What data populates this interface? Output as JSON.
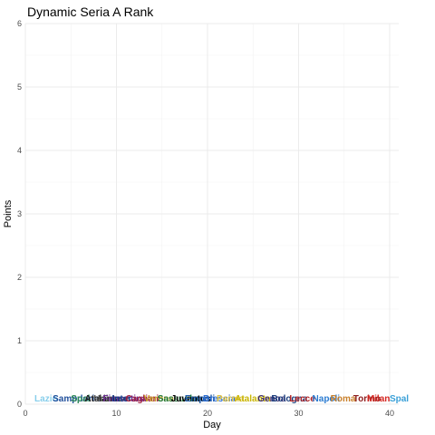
{
  "chart_data": {
    "type": "scatter",
    "title": "Dynamic Seria A Rank",
    "xlabel": "Day",
    "ylabel": "Points",
    "xlim": [
      0,
      41
    ],
    "ylim": [
      0,
      6
    ],
    "x_ticks": [
      0,
      10,
      20,
      30,
      40
    ],
    "y_ticks": [
      0,
      1,
      2,
      3,
      4,
      5,
      6
    ],
    "grid": true,
    "legend": "none",
    "points": [
      {
        "label": "Lazio",
        "x": 1,
        "y": 0,
        "color": "#87ceeb"
      },
      {
        "label": "Sampdoria",
        "x": 3,
        "y": 0,
        "color": "#1f4e9a"
      },
      {
        "label": "Spal",
        "x": 5,
        "y": 0,
        "color": "#2e8b57"
      },
      {
        "label": "Atalanta",
        "x": 6.5,
        "y": 0,
        "color": "#1a1a1a"
      },
      {
        "label": "Udinese",
        "x": 7.5,
        "y": 0,
        "color": "#555555"
      },
      {
        "label": "Fiorentina",
        "x": 8.5,
        "y": 0,
        "color": "#6a2c91"
      },
      {
        "label": "Inter",
        "x": 9.5,
        "y": 0,
        "color": "#123a8c"
      },
      {
        "label": "Cagliari",
        "x": 11,
        "y": 0,
        "color": "#a01c3c"
      },
      {
        "label": "Verona",
        "x": 13,
        "y": 0,
        "color": "#c9a227"
      },
      {
        "label": "Sassuolo",
        "x": 14.5,
        "y": 0,
        "color": "#1f7a3a"
      },
      {
        "label": "Juventus",
        "x": 16,
        "y": 0,
        "color": "#000000"
      },
      {
        "label": "Empoli",
        "x": 17.5,
        "y": 0,
        "color": "#1e5aa8"
      },
      {
        "label": "Brescia",
        "x": 19.5,
        "y": 0,
        "color": "#2a6bd1"
      },
      {
        "label": "Parma",
        "x": 21,
        "y": 0,
        "color": "#e0c341"
      },
      {
        "label": "Atalanta",
        "x": 23,
        "y": 0,
        "color": "#c8b400"
      },
      {
        "label": "Genoa",
        "x": 25.5,
        "y": 0,
        "color": "#3b2a6e"
      },
      {
        "label": "Bologna",
        "x": 27,
        "y": 0,
        "color": "#1a3d7c"
      },
      {
        "label": "Lecce",
        "x": 29,
        "y": 0,
        "color": "#b22222"
      },
      {
        "label": "Napoli",
        "x": 31.5,
        "y": 0,
        "color": "#2a7bd1"
      },
      {
        "label": "Roma",
        "x": 33.5,
        "y": 0,
        "color": "#c87f2a"
      },
      {
        "label": "Torino",
        "x": 36,
        "y": 0,
        "color": "#8b1a1a"
      },
      {
        "label": "Milan",
        "x": 37.5,
        "y": 0,
        "color": "#d4241f"
      },
      {
        "label": "Spal",
        "x": 40,
        "y": 0,
        "color": "#3aa0d8"
      }
    ]
  }
}
